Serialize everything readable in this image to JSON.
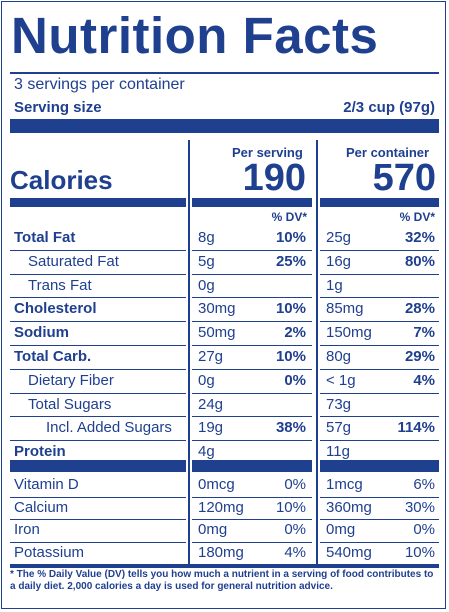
{
  "title": "Nutrition Facts",
  "servings_per_container": "3 servings per container",
  "serving_size_label": "Serving size",
  "serving_size_value": "2/3 cup (97g)",
  "calories_label": "Calories",
  "columns": {
    "per_serving": "Per serving",
    "per_container": "Per container",
    "dv_header": "% DV*"
  },
  "calories": {
    "per_serving": "190",
    "per_container": "570"
  },
  "rows": [
    {
      "label": "Total Fat",
      "bold": true,
      "indent": 0,
      "s_amt": "8g",
      "s_dv": "10%",
      "c_amt": "25g",
      "c_dv": "32%"
    },
    {
      "label": "Saturated Fat",
      "bold": false,
      "indent": 1,
      "s_amt": "5g",
      "s_dv": "25%",
      "c_amt": "16g",
      "c_dv": "80%"
    },
    {
      "label": "Trans Fat",
      "bold": false,
      "indent": 1,
      "s_amt": "0g",
      "s_dv": "",
      "c_amt": "1g",
      "c_dv": ""
    },
    {
      "label": "Cholesterol",
      "bold": true,
      "indent": 0,
      "s_amt": "30mg",
      "s_dv": "10%",
      "c_amt": "85mg",
      "c_dv": "28%"
    },
    {
      "label": "Sodium",
      "bold": true,
      "indent": 0,
      "s_amt": "50mg",
      "s_dv": "2%",
      "c_amt": "150mg",
      "c_dv": "7%"
    },
    {
      "label": "Total Carb.",
      "bold": true,
      "indent": 0,
      "s_amt": "27g",
      "s_dv": "10%",
      "c_amt": "80g",
      "c_dv": "29%"
    },
    {
      "label": "Dietary Fiber",
      "bold": false,
      "indent": 1,
      "s_amt": "0g",
      "s_dv": "0%",
      "c_amt": "< 1g",
      "c_dv": "4%"
    },
    {
      "label": "Total Sugars",
      "bold": false,
      "indent": 1,
      "s_amt": "24g",
      "s_dv": "",
      "c_amt": "73g",
      "c_dv": ""
    },
    {
      "label": "Incl. Added Sugars",
      "bold": false,
      "indent": 2,
      "s_amt": "19g",
      "s_dv": "38%",
      "c_amt": "57g",
      "c_dv": "114%"
    },
    {
      "label": "Protein",
      "bold": true,
      "indent": 0,
      "s_amt": "4g",
      "s_dv": "",
      "c_amt": "11g",
      "c_dv": ""
    }
  ],
  "vitamins": [
    {
      "label": "Vitamin D",
      "s_amt": "0mcg",
      "s_dv": "0%",
      "c_amt": "1mcg",
      "c_dv": "6%"
    },
    {
      "label": "Calcium",
      "s_amt": "120mg",
      "s_dv": "10%",
      "c_amt": "360mg",
      "c_dv": "30%"
    },
    {
      "label": "Iron",
      "s_amt": "0mg",
      "s_dv": "0%",
      "c_amt": "0mg",
      "c_dv": "0%"
    },
    {
      "label": "Potassium",
      "s_amt": "180mg",
      "s_dv": "4%",
      "c_amt": "540mg",
      "c_dv": "10%"
    }
  ],
  "footnote": "* The % Daily Value (DV) tells you how much a nutrient in a serving of food contributes to a daily diet. 2,000 calories a day is used for general nutrition advice.",
  "colors": {
    "ink": "#1f3f8f",
    "background": "#ffffff"
  }
}
